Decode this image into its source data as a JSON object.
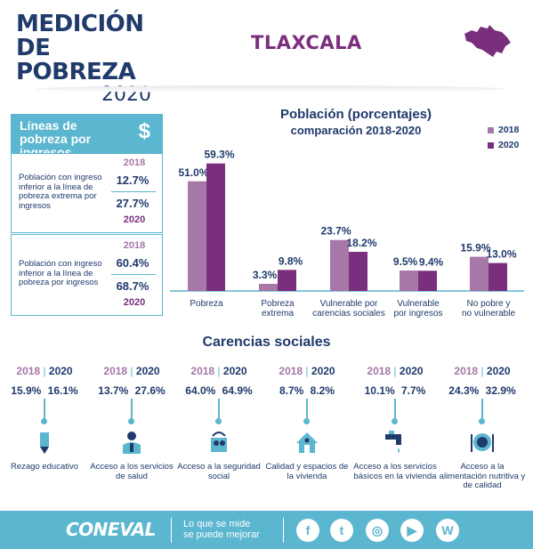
{
  "header": {
    "title_line1": "MEDICIÓN",
    "title_line2": "DE POBREZA",
    "title_line3": "2020",
    "state": "TLAXCALA"
  },
  "lineas": {
    "title": "Líneas de pobreza por ingresos",
    "currency_symbol": "$",
    "blocks": [
      {
        "description": "Población con ingreso inferior a la línea de pobreza extrema por ingresos",
        "year_a": "2018",
        "value_a": "12.7%",
        "value_b": "27.7%",
        "year_b": "2020"
      },
      {
        "description": "Población con ingreso inferior a la línea de pobreza por ingresos",
        "year_a": "2018",
        "value_a": "60.4%",
        "value_b": "68.7%",
        "year_b": "2020"
      }
    ]
  },
  "chart_data": {
    "type": "bar",
    "title": "Población (porcentajes)",
    "subtitle": "comparación 2018-2020",
    "categories": [
      "Pobreza",
      "Pobreza extrema",
      "Vulnerable por carencias sociales",
      "Vulnerable por ingresos",
      "No pobre y no vulnerable"
    ],
    "category_lines": [
      [
        "Pobreza"
      ],
      [
        "Pobreza",
        "extrema"
      ],
      [
        "Vulnerable por",
        "carencias sociales"
      ],
      [
        "Vulnerable",
        "por ingresos"
      ],
      [
        "No pobre y",
        "no vulnerable"
      ]
    ],
    "series": [
      {
        "name": "2018",
        "values": [
          51.0,
          3.3,
          23.7,
          9.5,
          15.9
        ],
        "labels": [
          "51.0%",
          "3.3%",
          "23.7%",
          "9.5%",
          "15.9%"
        ],
        "color": "#a777a8"
      },
      {
        "name": "2020",
        "values": [
          59.3,
          9.8,
          18.2,
          9.4,
          13.0
        ],
        "labels": [
          "59.3%",
          "9.8%",
          "18.2%",
          "9.4%",
          "13.0%"
        ],
        "color": "#7a2f7e"
      }
    ],
    "ylim": [
      0,
      60
    ],
    "grid": false,
    "legend": "top-right"
  },
  "carencias": {
    "title": "Carencias sociales",
    "year_a": "2018",
    "year_b": "2020",
    "items": [
      {
        "value_a": "15.9%",
        "value_b": "16.1%",
        "label": "Rezago educativo",
        "icon": "pencil-icon"
      },
      {
        "value_a": "13.7%",
        "value_b": "27.6%",
        "label": "Acceso a los servicios de salud",
        "icon": "doctor-icon"
      },
      {
        "value_a": "64.0%",
        "value_b": "64.9%",
        "label": "Acceso a la seguridad social",
        "icon": "social-security-icon"
      },
      {
        "value_a": "8.7%",
        "value_b": "8.2%",
        "label": "Calidad y espacios de la vivienda",
        "icon": "house-icon"
      },
      {
        "value_a": "10.1%",
        "value_b": "7.7%",
        "label": "Acceso a los servicios básicos en la vivienda",
        "icon": "faucet-icon"
      },
      {
        "value_a": "24.3%",
        "value_b": "32.9%",
        "label": "Acceso a la alimentación nutritiva y de calidad",
        "icon": "plate-icon"
      }
    ]
  },
  "footer": {
    "brand": "CONEVAL",
    "slogan_line1": "Lo que se mide",
    "slogan_line2": "se puede mejorar",
    "social": [
      {
        "name": "facebook-icon",
        "glyph": "f"
      },
      {
        "name": "twitter-icon",
        "glyph": "t"
      },
      {
        "name": "instagram-icon",
        "glyph": "◎"
      },
      {
        "name": "youtube-icon",
        "glyph": "▶"
      },
      {
        "name": "wordpress-icon",
        "glyph": "W"
      }
    ]
  },
  "colors": {
    "navy": "#1f3a6b",
    "purple": "#7a2f7e",
    "lilac": "#a777a8",
    "teal": "#5bb6cf"
  }
}
